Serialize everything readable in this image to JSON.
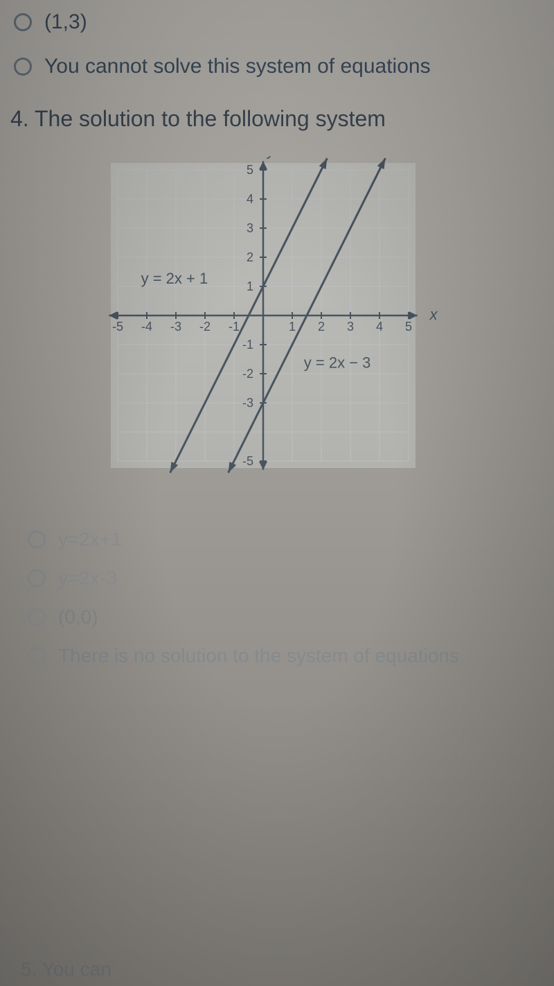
{
  "prev_options": {
    "option_a": "(1,3)",
    "option_b": "You cannot solve this system of equations"
  },
  "question": {
    "number": "4.",
    "text": "The solution to the following system"
  },
  "chart": {
    "type": "line",
    "xlim": [
      -5,
      5
    ],
    "ylim": [
      -5,
      5
    ],
    "xtick_labels": [
      "-5",
      "-4",
      "-3",
      "-2",
      "-1",
      "1",
      "2",
      "3",
      "4",
      "5"
    ],
    "ytick_labels": [
      "5",
      "4",
      "3",
      "2",
      "1",
      "-1",
      "-2",
      "-3",
      "-5"
    ],
    "x_axis_label": "x",
    "y_axis_label": "y",
    "lines": [
      {
        "label": "y = 2x + 1",
        "slope": 2,
        "intercept": 1,
        "color": "#4a5560",
        "width": 3
      },
      {
        "label": "y = 2x − 3",
        "slope": 2,
        "intercept": -3,
        "color": "#4a5560",
        "width": 3
      }
    ],
    "grid_color": "#c8ccd0",
    "axis_color": "#4a5560",
    "background_color": "#d8dcde",
    "tick_font_size": 18,
    "label_font_size": 22
  },
  "answers": {
    "a": "y=2x+1",
    "b": "y=2x-3",
    "c": "(0,0)",
    "d": "There is no solution to the system of equations"
  },
  "bottom_hint": "5. You can"
}
